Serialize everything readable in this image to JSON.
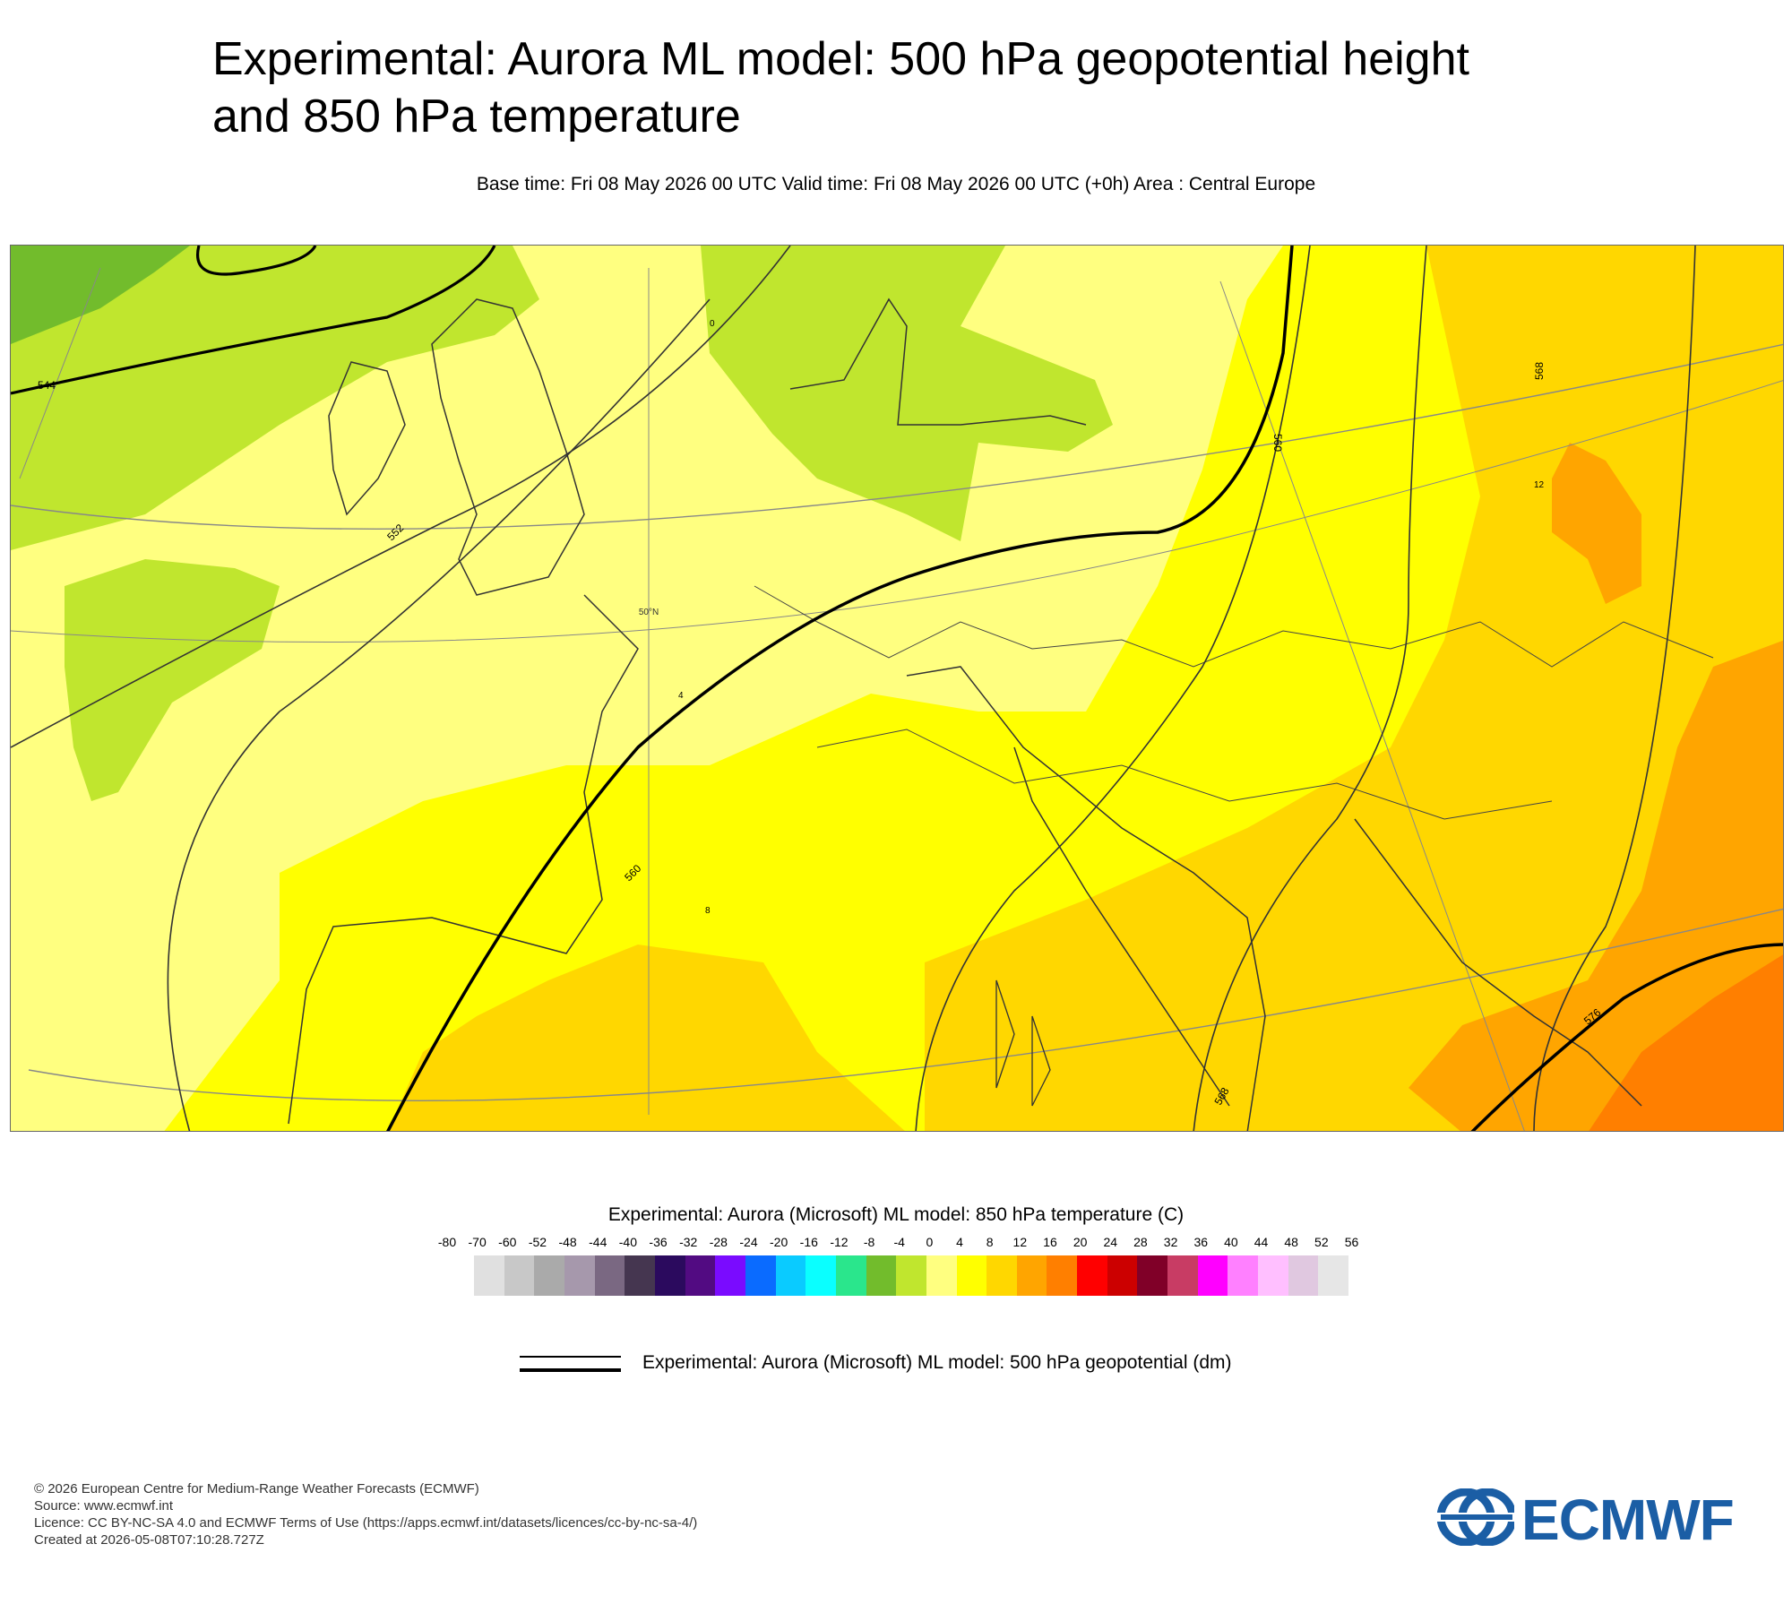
{
  "title_line1": "Experimental: Aurora ML model: 500 hPa geopotential height",
  "title_line2": "and 850 hPa temperature",
  "subtitle": "Base time: Fri 08 May 2026 00 UTC Valid time: Fri 08 May 2026 00 UTC (+0h) Area : Central Europe",
  "map": {
    "contour_labels": [
      "544",
      "552",
      "560",
      "568",
      "576"
    ],
    "temp_labels": [
      "4",
      "0",
      "8",
      "12"
    ],
    "lat_label": "50°N",
    "colors": {
      "t_minus4_0": "#c0e62e",
      "t_minus8_minus4": "#72bc2c",
      "t_0_4": "#ffff80",
      "t_4_8": "#ffff00",
      "t_8_12": "#ffd700",
      "t_12_16": "#ffa500",
      "t_16_20": "#ff7f00",
      "contour": "#000000",
      "coast": "#333333"
    }
  },
  "legend": {
    "title": "Experimental: Aurora (Microsoft) ML model: 850 hPa temperature (C)",
    "ticks": [
      "-80",
      "-70",
      "-60",
      "-52",
      "-48",
      "-44",
      "-40",
      "-36",
      "-32",
      "-28",
      "-24",
      "-20",
      "-16",
      "-12",
      "-8",
      "-4",
      "0",
      "4",
      "8",
      "12",
      "16",
      "20",
      "24",
      "28",
      "32",
      "36",
      "40",
      "44",
      "48",
      "52",
      "56"
    ],
    "colors": [
      "#e0e0e0",
      "#c8c8c8",
      "#aaaaaa",
      "#a698ac",
      "#7a6882",
      "#453650",
      "#2b0a5e",
      "#520b82",
      "#7a0bff",
      "#0a6bff",
      "#0acbff",
      "#0affff",
      "#2ae68c",
      "#72bc2c",
      "#c0e62e",
      "#ffff80",
      "#ffff00",
      "#ffd700",
      "#ffa500",
      "#ff7f00",
      "#ff0000",
      "#cc0000",
      "#800028",
      "#c83c64",
      "#ff00ff",
      "#ff80ff",
      "#ffbfff",
      "#e0c8e0",
      "#e6e6e6"
    ]
  },
  "contour_legend": {
    "label": "Experimental: Aurora (Microsoft) ML model: 500 hPa geopotential (dm)"
  },
  "footer": {
    "line1": "© 2026 European Centre for Medium-Range Weather Forecasts (ECMWF)",
    "line2": "Source: www.ecmwf.int",
    "line3": "Licence: CC BY-NC-SA 4.0 and ECMWF Terms of Use (https://apps.ecmwf.int/datasets/licences/cc-by-nc-sa-4/)",
    "line4": "Created at 2026-05-08T07:10:28.727Z"
  },
  "logo": {
    "text": "ECMWF",
    "color": "#1b5ea5",
    "icon": "ecmwf-logo-icon"
  }
}
